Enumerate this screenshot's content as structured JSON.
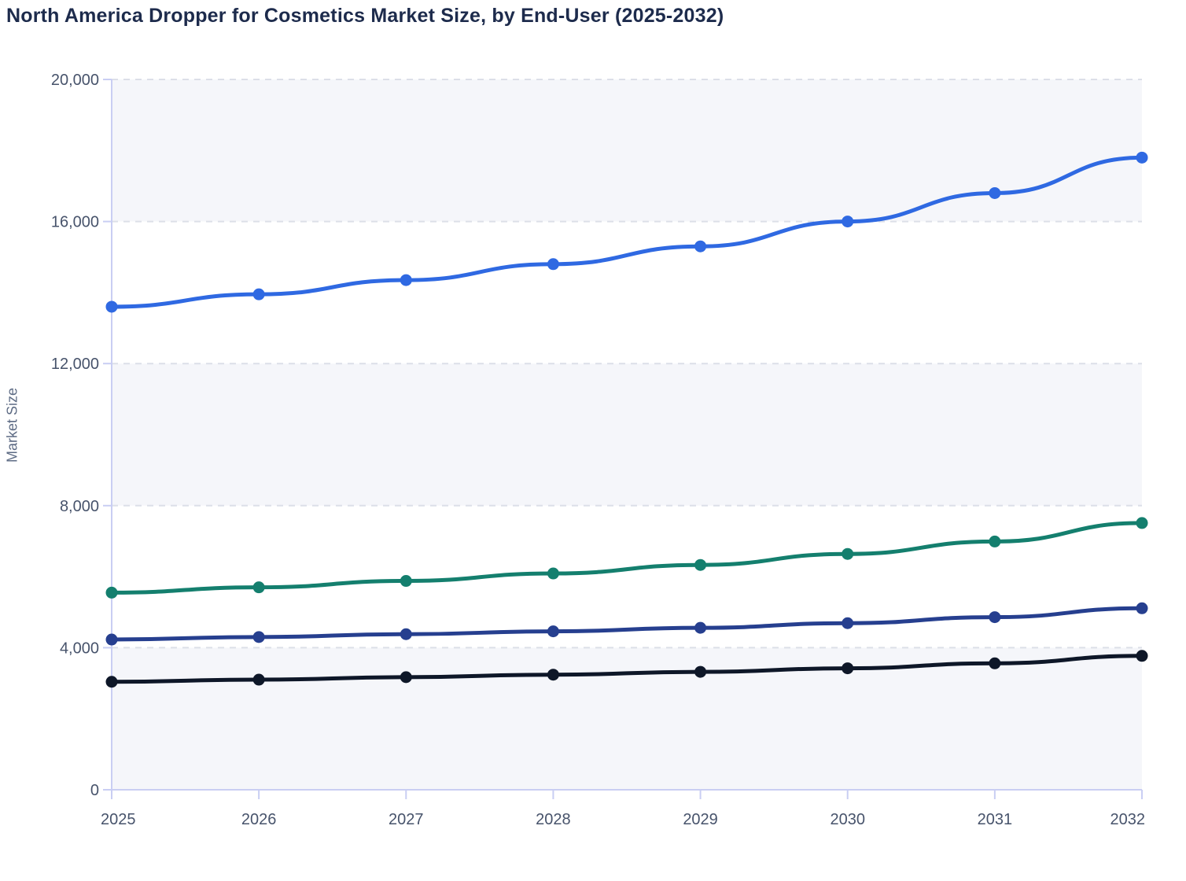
{
  "page": {
    "title": "North America Dropper for Cosmetics Market Size, by End-User (2025-2032)"
  },
  "chart_data": {
    "type": "line",
    "title": "North America Dropper for Cosmetics Market Size, by End-User (2025-2032)",
    "xlabel": "",
    "ylabel": "Market Size",
    "x": [
      2025,
      2026,
      2027,
      2028,
      2029,
      2030,
      2031,
      2032
    ],
    "x_tick_labels": [
      "2025",
      "2026",
      "2027",
      "2028",
      "2029",
      "2030",
      "2031",
      "2032"
    ],
    "series": [
      {
        "id": "series-1-blue",
        "color": "#2f69e2",
        "values": [
          13600,
          13950,
          14350,
          14800,
          15300,
          16000,
          16800,
          17800
        ]
      },
      {
        "id": "series-2-teal",
        "color": "#147f6e",
        "values": [
          5550,
          5700,
          5880,
          6090,
          6330,
          6640,
          6990,
          7510
        ]
      },
      {
        "id": "series-3-navy",
        "color": "#263f8f",
        "values": [
          4230,
          4300,
          4380,
          4460,
          4560,
          4690,
          4860,
          5110
        ]
      },
      {
        "id": "series-4-black",
        "color": "#0e1728",
        "values": [
          3040,
          3100,
          3170,
          3240,
          3320,
          3420,
          3560,
          3770
        ]
      }
    ],
    "ylim": [
      0,
      20000
    ],
    "ytick_step": 4000,
    "ytick_labels": [
      "0",
      "4,000",
      "8,000",
      "12,000",
      "16,000",
      "20,000"
    ],
    "grid": "horizontal-dashed",
    "legend_position": "none",
    "marker": "circle",
    "style_colors": {
      "title_color": "#1d2b4c",
      "tick_label_color": "#47536b",
      "axis_line_color": "#c9cef3",
      "grid_line_color": "#dcdfe8",
      "band_fill_color": "#f5f6fa",
      "background_color": "#ffffff"
    }
  }
}
